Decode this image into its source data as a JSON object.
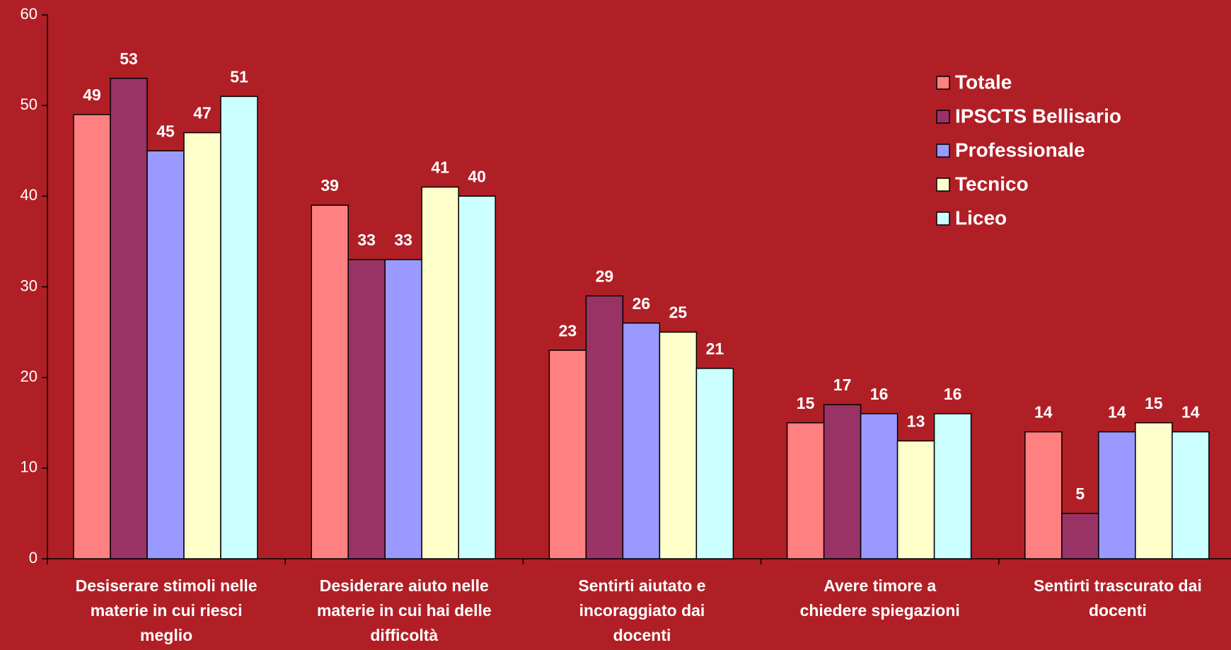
{
  "chart_data": {
    "type": "bar",
    "categories": [
      [
        "Desiserare stimoli nelle",
        "materie in cui riesci",
        "meglio"
      ],
      [
        "Desiderare aiuto nelle",
        "materie in cui hai delle",
        "difficoltà"
      ],
      [
        "Sentirti aiutato e",
        "incoraggiato dai",
        "docenti"
      ],
      [
        "Avere timore a",
        "chiedere spiegazioni"
      ],
      [
        "Sentirti trascurato dai",
        "docenti"
      ]
    ],
    "series": [
      {
        "name": "Totale",
        "color": "#FF8080",
        "values": [
          49,
          39,
          23,
          15,
          14
        ]
      },
      {
        "name": "IPSCTS Bellisario",
        "color": "#993366",
        "values": [
          53,
          33,
          29,
          17,
          5
        ]
      },
      {
        "name": "Professionale",
        "color": "#9999FF",
        "values": [
          45,
          33,
          26,
          16,
          14
        ]
      },
      {
        "name": "Tecnico",
        "color": "#FFFFCC",
        "values": [
          47,
          41,
          25,
          13,
          15
        ]
      },
      {
        "name": "Liceo",
        "color": "#CCFFFF",
        "values": [
          51,
          40,
          21,
          16,
          14
        ]
      }
    ],
    "ylim": [
      0,
      60
    ],
    "yticks": [
      0,
      10,
      20,
      30,
      40,
      50,
      60
    ],
    "legend": "upper right"
  }
}
